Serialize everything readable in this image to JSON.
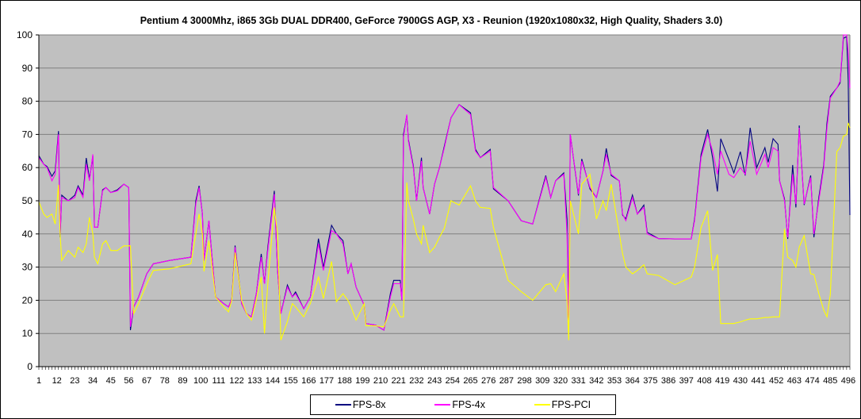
{
  "chart_data": {
    "type": "line",
    "title": "Pentium 4 3000Mhz, i865 3Gb DUAL DDR400, GeForce 7900GS AGP, X3 - Reunion (1920x1080x32, High Quality, Shaders 3.0)",
    "xlabel": "",
    "ylabel": "",
    "ylim": [
      0,
      100
    ],
    "yticks": [
      0,
      10,
      20,
      30,
      40,
      50,
      60,
      70,
      80,
      90,
      100
    ],
    "x_range": [
      1,
      497
    ],
    "xtick_labels": [
      "1",
      "12",
      "23",
      "34",
      "45",
      "56",
      "67",
      "78",
      "89",
      "100",
      "111",
      "122",
      "133",
      "144",
      "155",
      "166",
      "177",
      "188",
      "199",
      "210",
      "221",
      "232",
      "243",
      "254",
      "265",
      "276",
      "287",
      "298",
      "309",
      "320",
      "331",
      "342",
      "353",
      "364",
      "375",
      "386",
      "397",
      "408",
      "419",
      "430",
      "441",
      "452",
      "463",
      "474",
      "485",
      "496"
    ],
    "grid": "horizontal",
    "legend": "bottom",
    "plot_background": "#C0C0C0",
    "x": [
      1,
      4,
      6,
      9,
      11,
      13,
      14,
      15,
      19,
      23,
      25,
      28,
      30,
      32,
      34,
      35,
      37,
      40,
      42,
      45,
      49,
      53,
      56,
      57,
      59,
      62,
      67,
      71,
      81,
      94,
      97,
      99,
      101,
      102,
      105,
      109,
      114,
      117,
      119,
      121,
      125,
      128,
      131,
      134,
      137,
      139,
      141,
      145,
      147,
      149,
      153,
      156,
      158,
      163,
      167,
      172,
      175,
      180,
      183,
      187,
      190,
      192,
      195,
      200,
      201,
      207,
      212,
      216,
      218,
      222,
      223,
      224,
      226,
      227,
      230,
      232,
      235,
      236,
      240,
      243,
      246,
      249,
      253,
      258,
      265,
      268,
      271,
      277,
      279,
      288,
      296,
      303,
      311,
      314,
      317,
      322,
      324,
      325,
      326,
      331,
      333,
      338,
      342,
      346,
      348,
      351,
      356,
      358,
      360,
      364,
      367,
      371,
      373,
      380,
      390,
      400,
      402,
      406,
      410,
      413,
      416,
      418,
      423,
      426,
      430,
      433,
      436,
      440,
      445,
      447,
      450,
      453,
      454,
      457,
      459,
      462,
      464,
      466,
      469,
      473,
      475,
      478,
      481,
      483,
      485,
      489,
      491,
      493,
      495,
      496,
      497
    ],
    "series": [
      {
        "name": "FPS-8x",
        "color": "#000080",
        "values": [
          63.6,
          61,
          60.3,
          57.4,
          59,
          71,
          39,
          51.7,
          50,
          51.7,
          54.5,
          51.7,
          62.9,
          56.5,
          63.6,
          42,
          42,
          53.3,
          54,
          52.5,
          53.3,
          55,
          54,
          11,
          18,
          21,
          28,
          31,
          32,
          33,
          50,
          54.5,
          46,
          32,
          44,
          21,
          19,
          18,
          20.5,
          36.5,
          19,
          16,
          15,
          22,
          34,
          25,
          36,
          53,
          29,
          16,
          24.6,
          21,
          22.5,
          17.5,
          21,
          38.6,
          29.8,
          42.6,
          40,
          38,
          28,
          31,
          24,
          18.5,
          13,
          12.5,
          11,
          22,
          26,
          26,
          20,
          70,
          75.7,
          68.5,
          60.5,
          50,
          63,
          54,
          46,
          55,
          60,
          66.5,
          75,
          79,
          76.5,
          65.5,
          63,
          65.5,
          53.6,
          50,
          44,
          43,
          57.6,
          51,
          56,
          58.4,
          44.5,
          14.7,
          70,
          51.6,
          62.6,
          53.6,
          51,
          59,
          65.8,
          57.6,
          56,
          45.7,
          44.5,
          51.7,
          46,
          48.7,
          40.5,
          38.6,
          38.5,
          38.5,
          44.5,
          64,
          71.5,
          63,
          52.8,
          68.7,
          62.4,
          58.4,
          64.8,
          57.6,
          72,
          60,
          66,
          61.6,
          68.7,
          67,
          56,
          50.5,
          38.5,
          60.8,
          48,
          72.7,
          48.7,
          57.6,
          39,
          51,
          60.8,
          73.5,
          81.5,
          84,
          85.5,
          99,
          99.5,
          86,
          45.7
        ]
      },
      {
        "name": "FPS-4x",
        "color": "#FF00FF",
        "values": [
          63,
          61,
          60,
          56,
          58,
          70,
          40,
          51,
          50,
          51,
          54,
          51,
          61,
          56,
          64,
          42,
          42,
          53,
          54,
          52.5,
          53,
          55,
          54,
          12,
          18,
          21,
          28,
          31,
          32,
          33,
          49,
          54,
          46,
          32,
          44,
          21,
          19,
          18,
          20.5,
          36,
          19,
          16,
          15,
          22,
          33,
          25,
          35,
          52,
          29,
          16,
          24,
          21,
          22,
          17.5,
          21,
          37,
          29,
          41,
          40,
          37,
          28,
          31,
          24,
          18.5,
          13,
          12.5,
          11,
          21,
          25,
          25,
          20,
          69,
          76,
          68,
          60,
          50,
          62,
          54,
          46,
          55,
          60,
          66,
          75,
          79,
          76,
          65,
          63,
          65,
          54,
          50,
          44,
          43,
          57,
          51,
          56,
          58,
          40,
          14,
          70,
          52,
          62,
          54,
          51,
          59,
          64,
          58,
          56,
          46,
          44,
          51,
          46,
          48,
          40,
          38.6,
          38.5,
          38.5,
          44,
          63,
          70,
          65,
          58,
          65,
          58,
          57,
          60,
          58,
          68,
          58,
          64,
          60,
          66,
          65,
          56,
          50,
          39,
          58,
          49,
          72,
          49,
          57,
          40,
          50,
          60,
          72,
          81,
          84,
          86,
          100,
          100,
          95,
          84
        ]
      },
      {
        "name": "FPS-PCI",
        "color": "#FFFF00",
        "values": [
          49.7,
          46,
          45,
          46,
          43,
          54.8,
          40,
          32,
          35,
          33,
          36,
          34.4,
          37,
          45,
          40,
          33,
          31,
          37,
          38,
          35,
          35,
          36.4,
          36.4,
          36.4,
          16,
          19,
          25,
          29,
          29.5,
          31,
          40,
          46,
          40,
          28.7,
          38,
          21,
          18,
          16.5,
          20,
          34.4,
          20,
          16,
          14,
          20,
          27,
          10,
          25,
          48,
          40,
          8,
          13.6,
          19,
          18,
          15,
          19,
          27,
          20.5,
          31.7,
          19.6,
          22,
          20,
          18,
          14,
          19,
          12.3,
          12.3,
          12,
          17,
          19,
          15,
          15,
          15,
          55.5,
          50,
          44.5,
          40,
          37,
          42.6,
          34.4,
          36,
          39,
          41.7,
          50,
          48.7,
          54.5,
          50,
          48,
          47.7,
          42,
          26,
          22.6,
          20,
          24.7,
          25,
          22.6,
          28,
          20,
          8,
          50,
          40,
          55,
          58,
          44.5,
          50,
          47,
          55,
          40,
          34,
          30,
          28,
          29,
          30.7,
          28,
          27.5,
          24.7,
          27,
          30,
          42,
          47,
          29,
          33.8,
          13,
          13,
          13,
          13.5,
          14,
          14.4,
          14.4,
          14.8,
          14.8,
          15,
          15,
          15,
          41.5,
          33,
          32,
          30,
          36,
          39.5,
          28,
          27.8,
          22,
          17,
          15,
          21.8,
          64.8,
          66,
          69.5,
          70,
          73.5,
          72
        ]
      }
    ]
  }
}
